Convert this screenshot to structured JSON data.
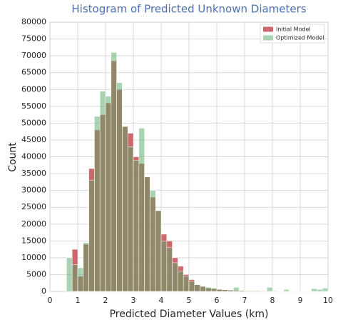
{
  "chart_data": {
    "type": "histogram",
    "title": "Histogram of Predicted Unknown Diameters",
    "xlabel": "Predicted Diameter Values (km)",
    "ylabel": "Count",
    "bins": [
      0.6,
      0.8,
      1.0,
      1.2,
      1.4,
      1.6,
      1.8,
      2.0,
      2.2,
      2.4,
      2.6,
      2.8,
      3.0,
      3.2,
      3.4,
      3.6,
      3.8,
      4.0,
      4.2,
      4.4,
      4.6,
      4.8,
      5.0,
      5.2,
      5.4,
      5.6,
      5.8,
      6.0,
      6.2,
      6.4,
      6.6,
      6.8,
      7.0,
      7.2,
      7.4,
      7.6,
      7.8,
      8.0,
      8.2,
      8.4,
      8.6,
      8.8,
      9.0,
      9.2,
      9.4,
      9.6,
      9.8,
      10.0
    ],
    "series": [
      {
        "name": "Initial Model",
        "color": "#c44e52",
        "values": [
          0,
          12500,
          4500,
          14000,
          36500,
          48000,
          52500,
          56000,
          68500,
          60000,
          49000,
          47000,
          40000,
          38000,
          34000,
          28000,
          24000,
          17000,
          15000,
          10000,
          7500,
          5000,
          3500,
          2000,
          1500,
          1000,
          800,
          700,
          500,
          400,
          300,
          300,
          200,
          200,
          200,
          150,
          100,
          100,
          100,
          100,
          100,
          100,
          100,
          100,
          100,
          100,
          100
        ]
      },
      {
        "name": "Optimized Model",
        "color": "#55a868",
        "values": [
          10000,
          8000,
          7000,
          14500,
          33000,
          52000,
          59500,
          58000,
          71000,
          62000,
          49000,
          43000,
          39000,
          48500,
          34000,
          30000,
          24000,
          15000,
          13000,
          8500,
          6000,
          4500,
          3000,
          2000,
          1500,
          1200,
          1000,
          600,
          500,
          400,
          1200,
          300,
          200,
          200,
          200,
          150,
          1200,
          200,
          100,
          600,
          100,
          100,
          100,
          100,
          800,
          600,
          1000
        ]
      }
    ],
    "xlim": [
      0,
      10
    ],
    "xticks": [
      0,
      1,
      2,
      3,
      4,
      5,
      6,
      7,
      8,
      9,
      10
    ],
    "ylim": [
      0,
      80000
    ],
    "yticks": [
      0,
      5000,
      10000,
      15000,
      20000,
      25000,
      30000,
      35000,
      40000,
      45000,
      50000,
      55000,
      60000,
      65000,
      70000,
      75000,
      80000
    ],
    "grid": true,
    "legend": "upper right"
  }
}
